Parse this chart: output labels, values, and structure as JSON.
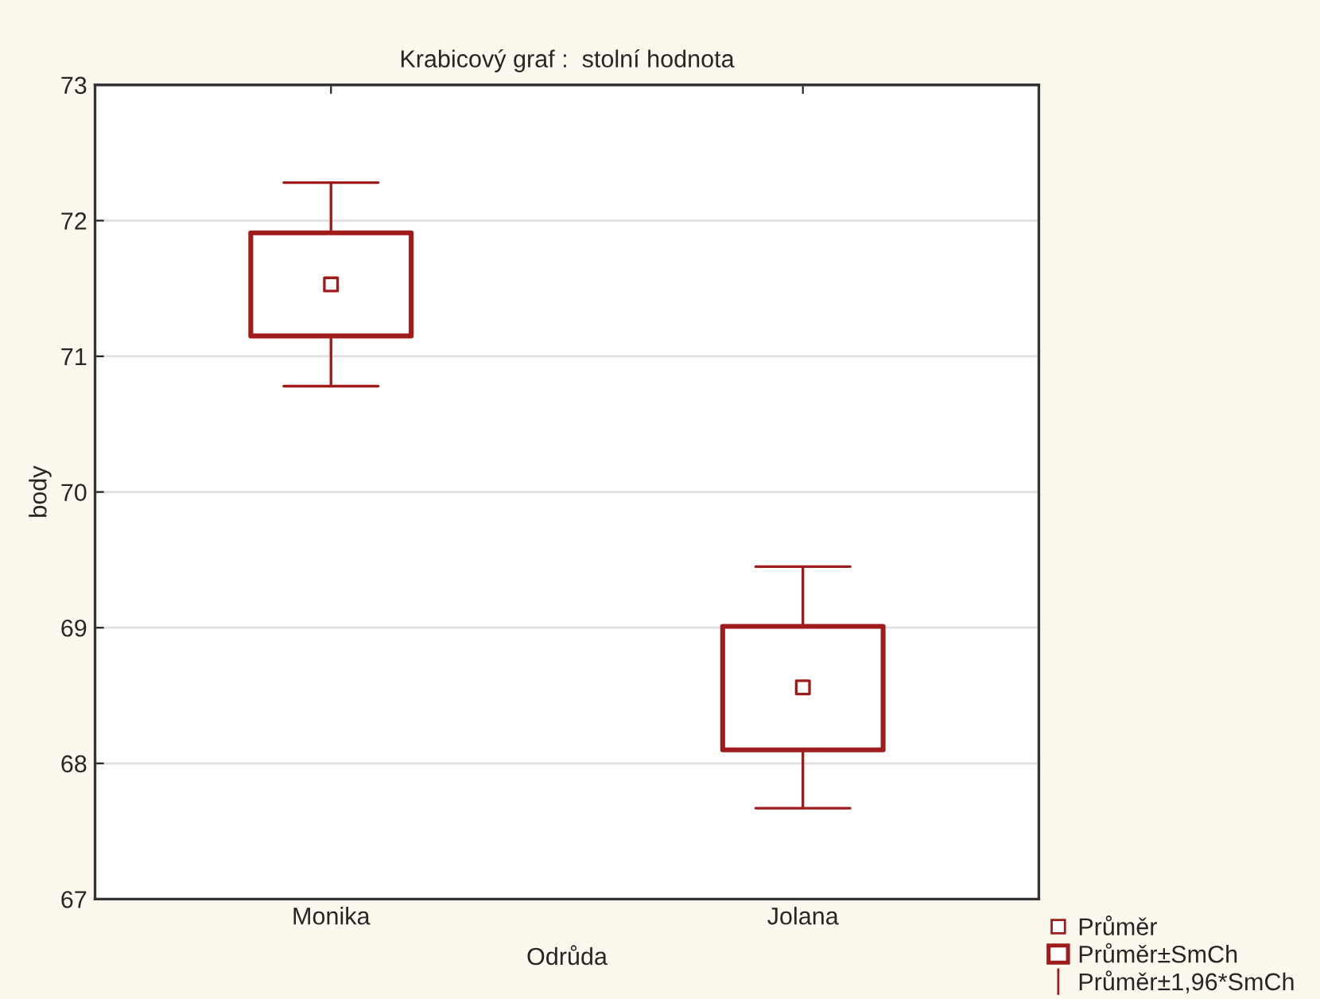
{
  "chart_data": {
    "type": "box",
    "title": "Krabicový graf :  stolní hodnota",
    "xlabel": "Odrůda",
    "ylabel": "body",
    "categories": [
      "Monika",
      "Jolana"
    ],
    "boxes": [
      {
        "low": 70.78,
        "q1": 71.15,
        "median": 71.53,
        "q3": 71.91,
        "high": 72.28
      },
      {
        "low": 67.67,
        "q1": 68.1,
        "median": 68.56,
        "q3": 69.01,
        "high": 69.45
      }
    ],
    "color": "#a01c1c",
    "ylim": [
      67,
      73
    ],
    "yticks": [
      67,
      68,
      69,
      70,
      71,
      72,
      73
    ],
    "grid": "y",
    "annotations": [
      "Průměr",
      "Průměr±SmCh",
      "Průměr±1,96*SmCh"
    ]
  }
}
